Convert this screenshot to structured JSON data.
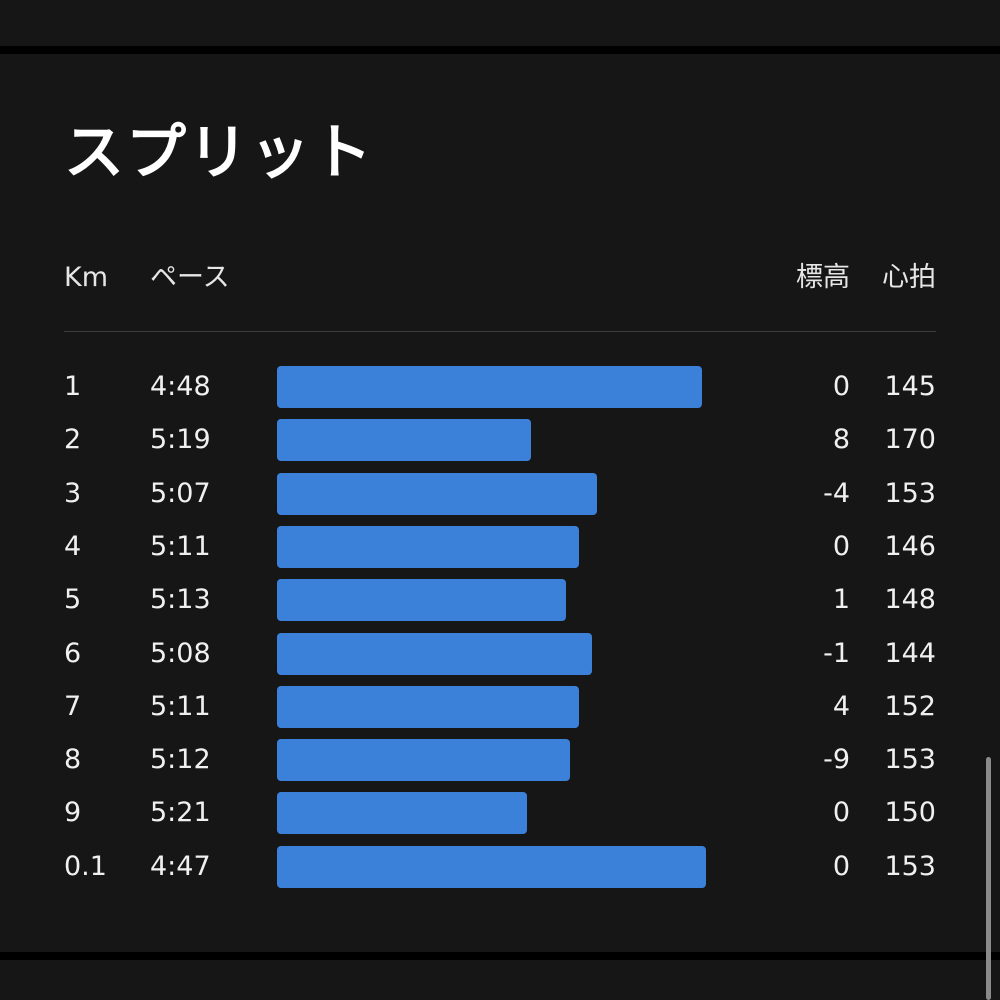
{
  "title": "スプリット",
  "columns": {
    "km": "Km",
    "pace": "ペース",
    "elevation": "標高",
    "heart_rate": "心拍"
  },
  "colors": {
    "bar": "#3b80d9",
    "background": "#161616",
    "text": "#f0f0f0"
  },
  "splits": [
    {
      "km": "1",
      "pace": "4:48",
      "pace_fraction": 0.97,
      "elevation": "0",
      "heart_rate": "145"
    },
    {
      "km": "2",
      "pace": "5:19",
      "pace_fraction": 0.58,
      "elevation": "8",
      "heart_rate": "170"
    },
    {
      "km": "3",
      "pace": "5:07",
      "pace_fraction": 0.73,
      "elevation": "-4",
      "heart_rate": "153"
    },
    {
      "km": "4",
      "pace": "5:11",
      "pace_fraction": 0.69,
      "elevation": "0",
      "heart_rate": "146"
    },
    {
      "km": "5",
      "pace": "5:13",
      "pace_fraction": 0.66,
      "elevation": "1",
      "heart_rate": "148"
    },
    {
      "km": "6",
      "pace": "5:08",
      "pace_fraction": 0.72,
      "elevation": "-1",
      "heart_rate": "144"
    },
    {
      "km": "7",
      "pace": "5:11",
      "pace_fraction": 0.69,
      "elevation": "4",
      "heart_rate": "152"
    },
    {
      "km": "8",
      "pace": "5:12",
      "pace_fraction": 0.67,
      "elevation": "-9",
      "heart_rate": "153"
    },
    {
      "km": "9",
      "pace": "5:21",
      "pace_fraction": 0.57,
      "elevation": "0",
      "heart_rate": "150"
    },
    {
      "km": "0.1",
      "pace": "4:47",
      "pace_fraction": 0.98,
      "elevation": "0",
      "heart_rate": "153"
    }
  ]
}
